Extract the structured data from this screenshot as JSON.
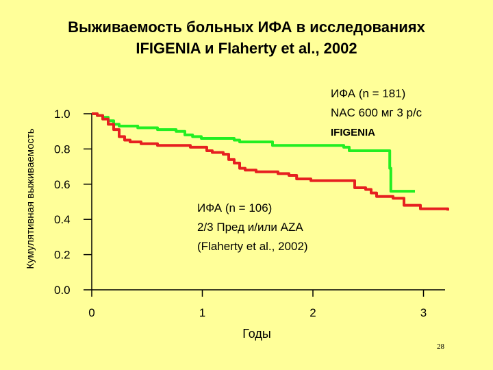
{
  "slide": {
    "title_line1": "Выживаемость больных ИФА в исследованиях",
    "title_line2": "IFIGENIA и Flaherty et al., 2002",
    "page_number": "28"
  },
  "chart_data": {
    "type": "line",
    "step": true,
    "ylabel": "Кумулятивная выживаемость",
    "xlabel": "Годы",
    "xlim": [
      0,
      3.3
    ],
    "ylim": [
      0,
      1.0
    ],
    "x_ticks": [
      "0",
      "1",
      "2",
      "3"
    ],
    "y_ticks": [
      "1.0",
      "0.8",
      "0.6",
      "0.4",
      "0.2",
      "0.0"
    ],
    "grid": false,
    "colors": {
      "green": "#22ee22",
      "red": "#e62020"
    },
    "series": [
      {
        "name": "IFIGENIA",
        "color": "#22ee22",
        "label_lines": [
          "ИФА (n = 181)",
          "NAC 600 мг 3 р/с",
          "IFIGENIA"
        ],
        "x": [
          0,
          0.05,
          0.1,
          0.15,
          0.2,
          0.25,
          0.32,
          0.42,
          0.6,
          0.77,
          0.85,
          0.92,
          1.0,
          1.3,
          1.35,
          1.58,
          1.65,
          2.3,
          2.35,
          2.72,
          2.73,
          2.95
        ],
        "y": [
          1.0,
          0.99,
          0.98,
          0.96,
          0.94,
          0.93,
          0.93,
          0.92,
          0.91,
          0.9,
          0.88,
          0.87,
          0.86,
          0.85,
          0.84,
          0.84,
          0.82,
          0.81,
          0.79,
          0.69,
          0.56,
          0.56
        ]
      },
      {
        "name": "Flaherty et al., 2002",
        "color": "#e62020",
        "label_lines": [
          "ИФА (n = 106)",
          "2/3 Пред и/или AZA",
          "(Flaherty et al., 2002)"
        ],
        "x": [
          0,
          0.05,
          0.1,
          0.15,
          0.2,
          0.25,
          0.3,
          0.35,
          0.45,
          0.6,
          0.75,
          0.9,
          1.05,
          1.1,
          1.2,
          1.25,
          1.3,
          1.35,
          1.4,
          1.5,
          1.7,
          1.8,
          1.87,
          2.0,
          2.2,
          2.4,
          2.5,
          2.55,
          2.6,
          2.75,
          2.85,
          3.0,
          3.25
        ],
        "y": [
          1.0,
          0.99,
          0.97,
          0.94,
          0.91,
          0.87,
          0.85,
          0.84,
          0.83,
          0.82,
          0.82,
          0.81,
          0.79,
          0.78,
          0.77,
          0.74,
          0.72,
          0.69,
          0.68,
          0.67,
          0.66,
          0.65,
          0.63,
          0.62,
          0.62,
          0.58,
          0.57,
          0.55,
          0.53,
          0.52,
          0.48,
          0.46,
          0.45
        ]
      }
    ]
  }
}
